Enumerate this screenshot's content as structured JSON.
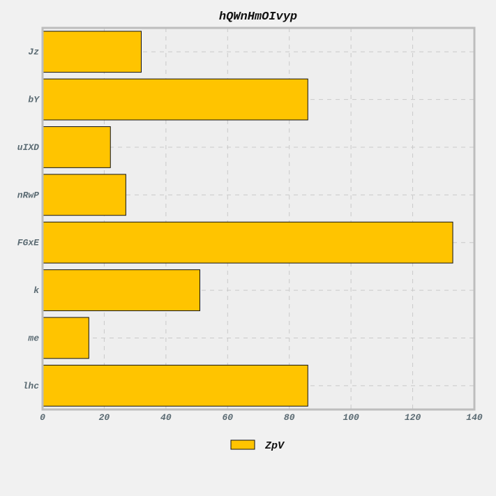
{
  "chart_data": {
    "type": "bar",
    "orientation": "horizontal",
    "title": "hQWnHmOIvyp",
    "xlabel": "",
    "ylabel": "",
    "categories": [
      "Jz",
      "bY",
      "uIXD",
      "nRwP",
      "FGxE",
      "k",
      "me",
      "lhc"
    ],
    "series": [
      {
        "name": "ZpV",
        "values": [
          32,
          86,
          22,
          27,
          133,
          51,
          15,
          86
        ],
        "color": "#ffc400"
      }
    ],
    "xlim": [
      0,
      140
    ],
    "xticks": [
      "0",
      "20",
      "40",
      "60",
      "80",
      "100",
      "120",
      "140"
    ],
    "grid": true,
    "legend_position": "bottom-center",
    "colors": {
      "plot_background": "#eeeeee",
      "page_background": "#f1f1f1",
      "frame": "#bdbdbd",
      "grid": "#c9c9c9",
      "bar_edge": "#111111"
    }
  }
}
